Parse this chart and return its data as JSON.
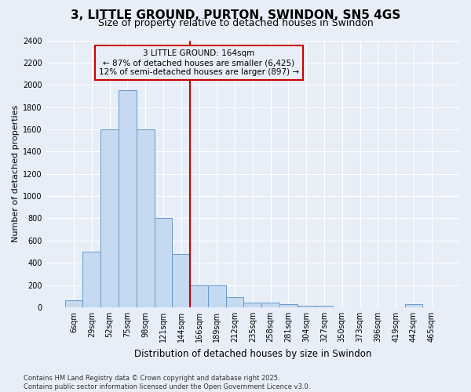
{
  "title": "3, LITTLE GROUND, PURTON, SWINDON, SN5 4GS",
  "subtitle": "Size of property relative to detached houses in Swindon",
  "xlabel": "Distribution of detached houses by size in Swindon",
  "ylabel": "Number of detached properties",
  "categories": [
    "6sqm",
    "29sqm",
    "52sqm",
    "75sqm",
    "98sqm",
    "121sqm",
    "144sqm",
    "166sqm",
    "189sqm",
    "212sqm",
    "235sqm",
    "258sqm",
    "281sqm",
    "304sqm",
    "327sqm",
    "350sqm",
    "373sqm",
    "396sqm",
    "419sqm",
    "442sqm",
    "465sqm"
  ],
  "values": [
    60,
    500,
    1600,
    1950,
    1600,
    800,
    480,
    200,
    195,
    90,
    45,
    40,
    30,
    15,
    12,
    0,
    0,
    0,
    0,
    30,
    0
  ],
  "bar_color": "#c5d9f0",
  "bar_edge_color": "#6699cc",
  "vline_color": "#cc0000",
  "vline_pos": 6.5,
  "annotation_text": "3 LITTLE GROUND: 164sqm\n← 87% of detached houses are smaller (6,425)\n12% of semi-detached houses are larger (897) →",
  "annotation_box_color": "#cc0000",
  "ylim": [
    0,
    2400
  ],
  "yticks": [
    0,
    200,
    400,
    600,
    800,
    1000,
    1200,
    1400,
    1600,
    1800,
    2000,
    2200,
    2400
  ],
  "bg_color": "#e8eef8",
  "grid_color": "#ffffff",
  "footer": "Contains HM Land Registry data © Crown copyright and database right 2025.\nContains public sector information licensed under the Open Government Licence v3.0.",
  "title_fontsize": 11,
  "subtitle_fontsize": 9,
  "xlabel_fontsize": 8.5,
  "ylabel_fontsize": 8,
  "tick_fontsize": 7,
  "annotation_fontsize": 7.5,
  "footer_fontsize": 6
}
